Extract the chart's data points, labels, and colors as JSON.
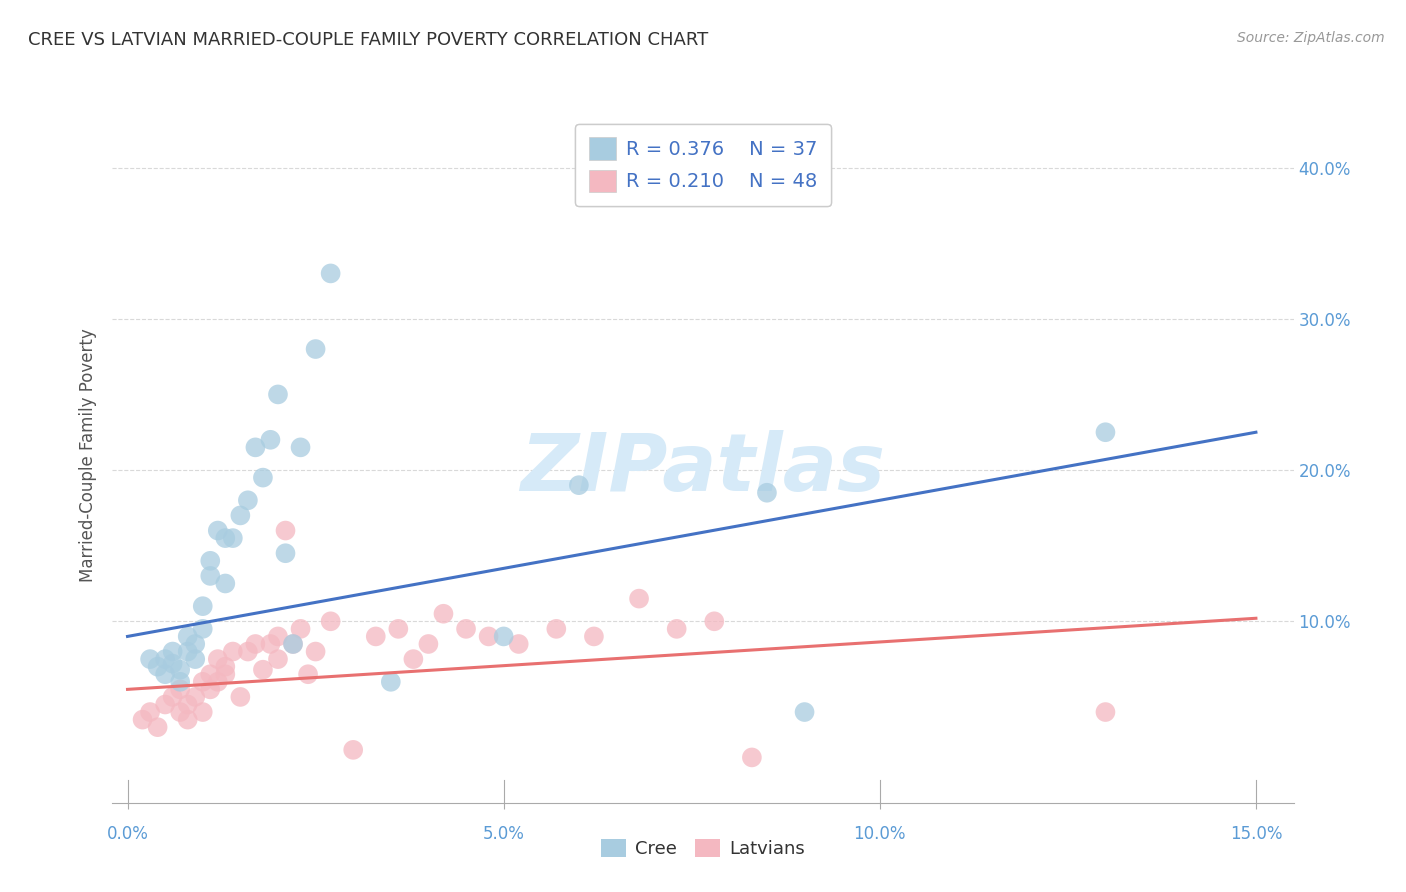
{
  "title": "CREE VS LATVIAN MARRIED-COUPLE FAMILY POVERTY CORRELATION CHART",
  "source": "Source: ZipAtlas.com",
  "ylabel_label": "Married-Couple Family Poverty",
  "xlim": [
    -0.002,
    0.155
  ],
  "ylim": [
    -0.02,
    0.44
  ],
  "ytick_vals": [
    0.1,
    0.2,
    0.3,
    0.4
  ],
  "ytick_labels": [
    "10.0%",
    "20.0%",
    "30.0%",
    "40.0%"
  ],
  "xtick_vals": [
    0.0,
    0.05,
    0.1,
    0.15
  ],
  "xtick_labels": [
    "0.0%",
    "5.0%",
    "10.0%",
    "15.0%"
  ],
  "legend_cree_R": "0.376",
  "legend_cree_N": "37",
  "legend_latvian_R": "0.210",
  "legend_latvian_N": "48",
  "cree_color": "#a8cce0",
  "latvian_color": "#f4b8c1",
  "cree_line_color": "#4472c4",
  "latvian_line_color": "#e87070",
  "tick_color": "#5b9bd5",
  "watermark_color": "#d6eaf8",
  "cree_scatter_x": [
    0.003,
    0.004,
    0.005,
    0.005,
    0.006,
    0.006,
    0.007,
    0.007,
    0.008,
    0.008,
    0.009,
    0.009,
    0.01,
    0.01,
    0.011,
    0.011,
    0.012,
    0.013,
    0.013,
    0.014,
    0.015,
    0.016,
    0.017,
    0.018,
    0.019,
    0.02,
    0.021,
    0.022,
    0.023,
    0.025,
    0.027,
    0.035,
    0.05,
    0.06,
    0.085,
    0.09,
    0.13
  ],
  "cree_scatter_y": [
    0.075,
    0.07,
    0.075,
    0.065,
    0.08,
    0.072,
    0.06,
    0.068,
    0.08,
    0.09,
    0.075,
    0.085,
    0.11,
    0.095,
    0.13,
    0.14,
    0.16,
    0.155,
    0.125,
    0.155,
    0.17,
    0.18,
    0.215,
    0.195,
    0.22,
    0.25,
    0.145,
    0.085,
    0.215,
    0.28,
    0.33,
    0.06,
    0.09,
    0.19,
    0.185,
    0.04,
    0.225
  ],
  "latvian_scatter_x": [
    0.002,
    0.003,
    0.004,
    0.005,
    0.006,
    0.007,
    0.007,
    0.008,
    0.008,
    0.009,
    0.01,
    0.01,
    0.011,
    0.011,
    0.012,
    0.012,
    0.013,
    0.013,
    0.014,
    0.015,
    0.016,
    0.017,
    0.018,
    0.019,
    0.02,
    0.02,
    0.021,
    0.022,
    0.023,
    0.024,
    0.025,
    0.027,
    0.03,
    0.033,
    0.036,
    0.038,
    0.04,
    0.042,
    0.045,
    0.048,
    0.052,
    0.057,
    0.062,
    0.068,
    0.073,
    0.078,
    0.083,
    0.13
  ],
  "latvian_scatter_y": [
    0.035,
    0.04,
    0.03,
    0.045,
    0.05,
    0.04,
    0.055,
    0.035,
    0.045,
    0.05,
    0.04,
    0.06,
    0.055,
    0.065,
    0.06,
    0.075,
    0.065,
    0.07,
    0.08,
    0.05,
    0.08,
    0.085,
    0.068,
    0.085,
    0.075,
    0.09,
    0.16,
    0.085,
    0.095,
    0.065,
    0.08,
    0.1,
    0.015,
    0.09,
    0.095,
    0.075,
    0.085,
    0.105,
    0.095,
    0.09,
    0.085,
    0.095,
    0.09,
    0.115,
    0.095,
    0.1,
    0.01,
    0.04
  ],
  "cree_line_x": [
    0.0,
    0.15
  ],
  "cree_line_y": [
    0.09,
    0.225
  ],
  "latvian_line_x": [
    0.0,
    0.15
  ],
  "latvian_line_y": [
    0.055,
    0.102
  ],
  "grid_color": "#d9d9d9",
  "background_color": "#ffffff"
}
